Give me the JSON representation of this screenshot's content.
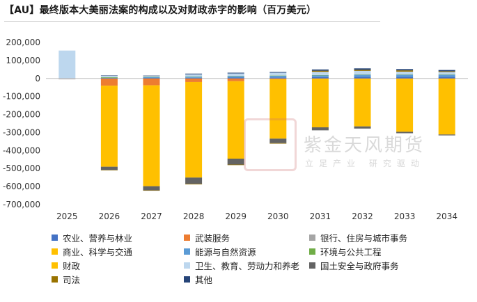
{
  "title": "【AU】最终版本大美丽法案的构成以及对财政赤字的影响（百万美元）",
  "watermark": {
    "brand": "紫金天风期货",
    "slogan": "立足产业 研究驱动"
  },
  "chart_data": {
    "type": "bar",
    "stacked": true,
    "title": "【AU】最终版本大美丽法案的构成以及对财政赤字的影响（百万美元）",
    "ylim": [
      -700000,
      200000
    ],
    "yticks": [
      200000,
      100000,
      0,
      -100000,
      -200000,
      -300000,
      -400000,
      -500000,
      -600000,
      -700000
    ],
    "ytick_labels": [
      "200,000",
      "100,000",
      "0",
      "-100,000",
      "-200,000",
      "-300,000",
      "-400,000",
      "-500,000",
      "-600,000",
      "-700,000"
    ],
    "categories": [
      "2025",
      "2026",
      "2027",
      "2028",
      "2029",
      "2030",
      "2031",
      "2032",
      "2033",
      "2034"
    ],
    "legend_position": "bottom",
    "series": [
      {
        "name": "农业、营养与林业",
        "color": "#4472C4",
        "values": [
          0,
          1000,
          3000,
          4000,
          5000,
          6000,
          8000,
          9000,
          9000,
          9000
        ]
      },
      {
        "name": "武装服务",
        "color": "#ED7D31",
        "values": [
          -1000,
          -40000,
          -38000,
          -20000,
          -15000,
          -4000,
          -1000,
          -1000,
          -1000,
          -1000
        ]
      },
      {
        "name": "银行、住房与城市事务",
        "color": "#A5A5A5",
        "values": [
          0,
          0,
          0,
          0,
          0,
          0,
          0,
          0,
          0,
          0
        ]
      },
      {
        "name": "商业、科学与交通",
        "color": "#FFC000",
        "values": [
          0,
          0,
          0,
          0,
          0,
          0,
          0,
          0,
          0,
          0
        ]
      },
      {
        "name": "能源与自然资源",
        "color": "#5B9BD5",
        "values": [
          0,
          3000,
          4000,
          6000,
          8000,
          9000,
          10000,
          12000,
          12000,
          12000
        ]
      },
      {
        "name": "环境与公共工程",
        "color": "#70AD47",
        "values": [
          0,
          3000,
          2000,
          1000,
          1000,
          1000,
          1000,
          1000,
          1000,
          1000
        ]
      },
      {
        "name": "财政",
        "color": "#FFC000",
        "values": [
          0,
          -450000,
          -560000,
          -530000,
          -430000,
          -330000,
          -270000,
          -265000,
          -295000,
          -310000
        ]
      },
      {
        "name": "卫生、教育、劳动力和养老",
        "color": "#BDD7EE",
        "values": [
          155000,
          8000,
          5000,
          12000,
          14000,
          16000,
          18000,
          20000,
          16000,
          14000
        ]
      },
      {
        "name": "国土安全与政府事务",
        "color": "#636363",
        "values": [
          -2000,
          -18000,
          -23000,
          -35000,
          -33000,
          -25000,
          -17000,
          -12000,
          -8000,
          -5000
        ]
      },
      {
        "name": "司法",
        "color": "#997300",
        "values": [
          0,
          -2000,
          -2000,
          -3000,
          -3000,
          -3000,
          6000,
          6000,
          7000,
          4000
        ]
      },
      {
        "name": "其他",
        "color": "#264478",
        "values": [
          0,
          2000,
          2000,
          4000,
          4000,
          4000,
          7000,
          8000,
          7000,
          7000
        ]
      }
    ]
  }
}
